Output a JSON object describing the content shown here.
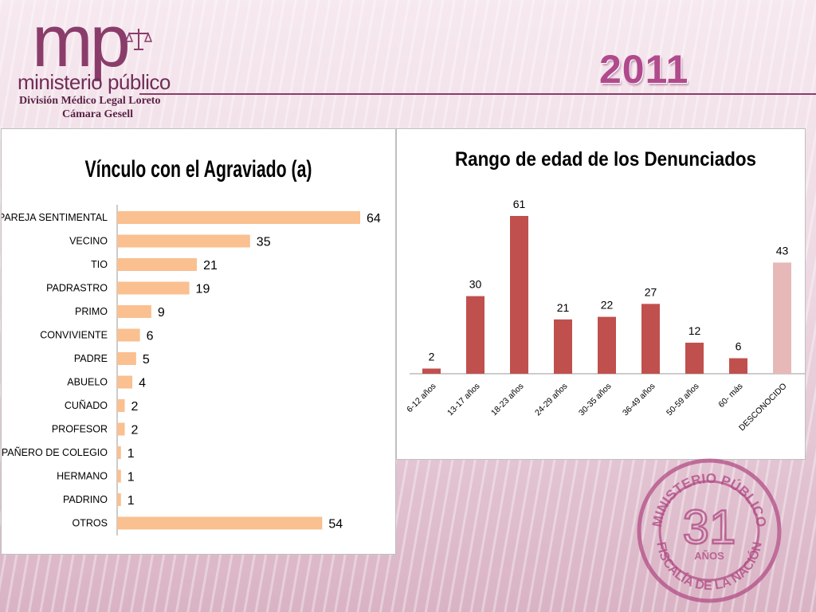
{
  "header": {
    "logo_letters": "mp",
    "logo_name": "ministerio público",
    "division": "División Médico Legal Loreto",
    "unit": "Cámara Gesell",
    "year": "2011"
  },
  "stamp": {
    "top_text": "MINISTERIO PÚBLICO",
    "number": "31",
    "years": "AÑOS",
    "bottom_text": "FISCALÍA DE LA NACIÓN"
  },
  "colors": {
    "accent": "#8a3d6a",
    "bar_left": "#fac090",
    "bar_right": "#c0504d",
    "bar_right_unknown": "#e6b9b8"
  },
  "chart_data": [
    {
      "type": "bar",
      "orientation": "horizontal",
      "title": "Vínculo con el Agraviado (a)",
      "categories": [
        "PAREJA SENTIMENTAL",
        "VECINO",
        "TIO",
        "PADRASTRO",
        "PRIMO",
        "CONVIVIENTE",
        "PADRE",
        "ABUELO",
        "CUÑADO",
        "PROFESOR",
        "COMPAÑERO DE COLEGIO",
        "HERMANO",
        "PADRINO",
        "OTROS"
      ],
      "values": [
        64,
        35,
        21,
        19,
        9,
        6,
        5,
        4,
        2,
        2,
        1,
        1,
        1,
        54
      ],
      "grid": false,
      "legend": "none"
    },
    {
      "type": "bar",
      "orientation": "vertical",
      "title": "Rango de edad de los Denunciados",
      "categories": [
        "6-12 años",
        "13-17 años",
        "18-23 años",
        "24-29 años",
        "30-35 años",
        "36-49 años",
        "50-59 años",
        "60- más",
        "DESCONOCIDO"
      ],
      "values": [
        2,
        30,
        61,
        21,
        22,
        27,
        12,
        6,
        43
      ],
      "grid": false,
      "legend": "none"
    }
  ]
}
